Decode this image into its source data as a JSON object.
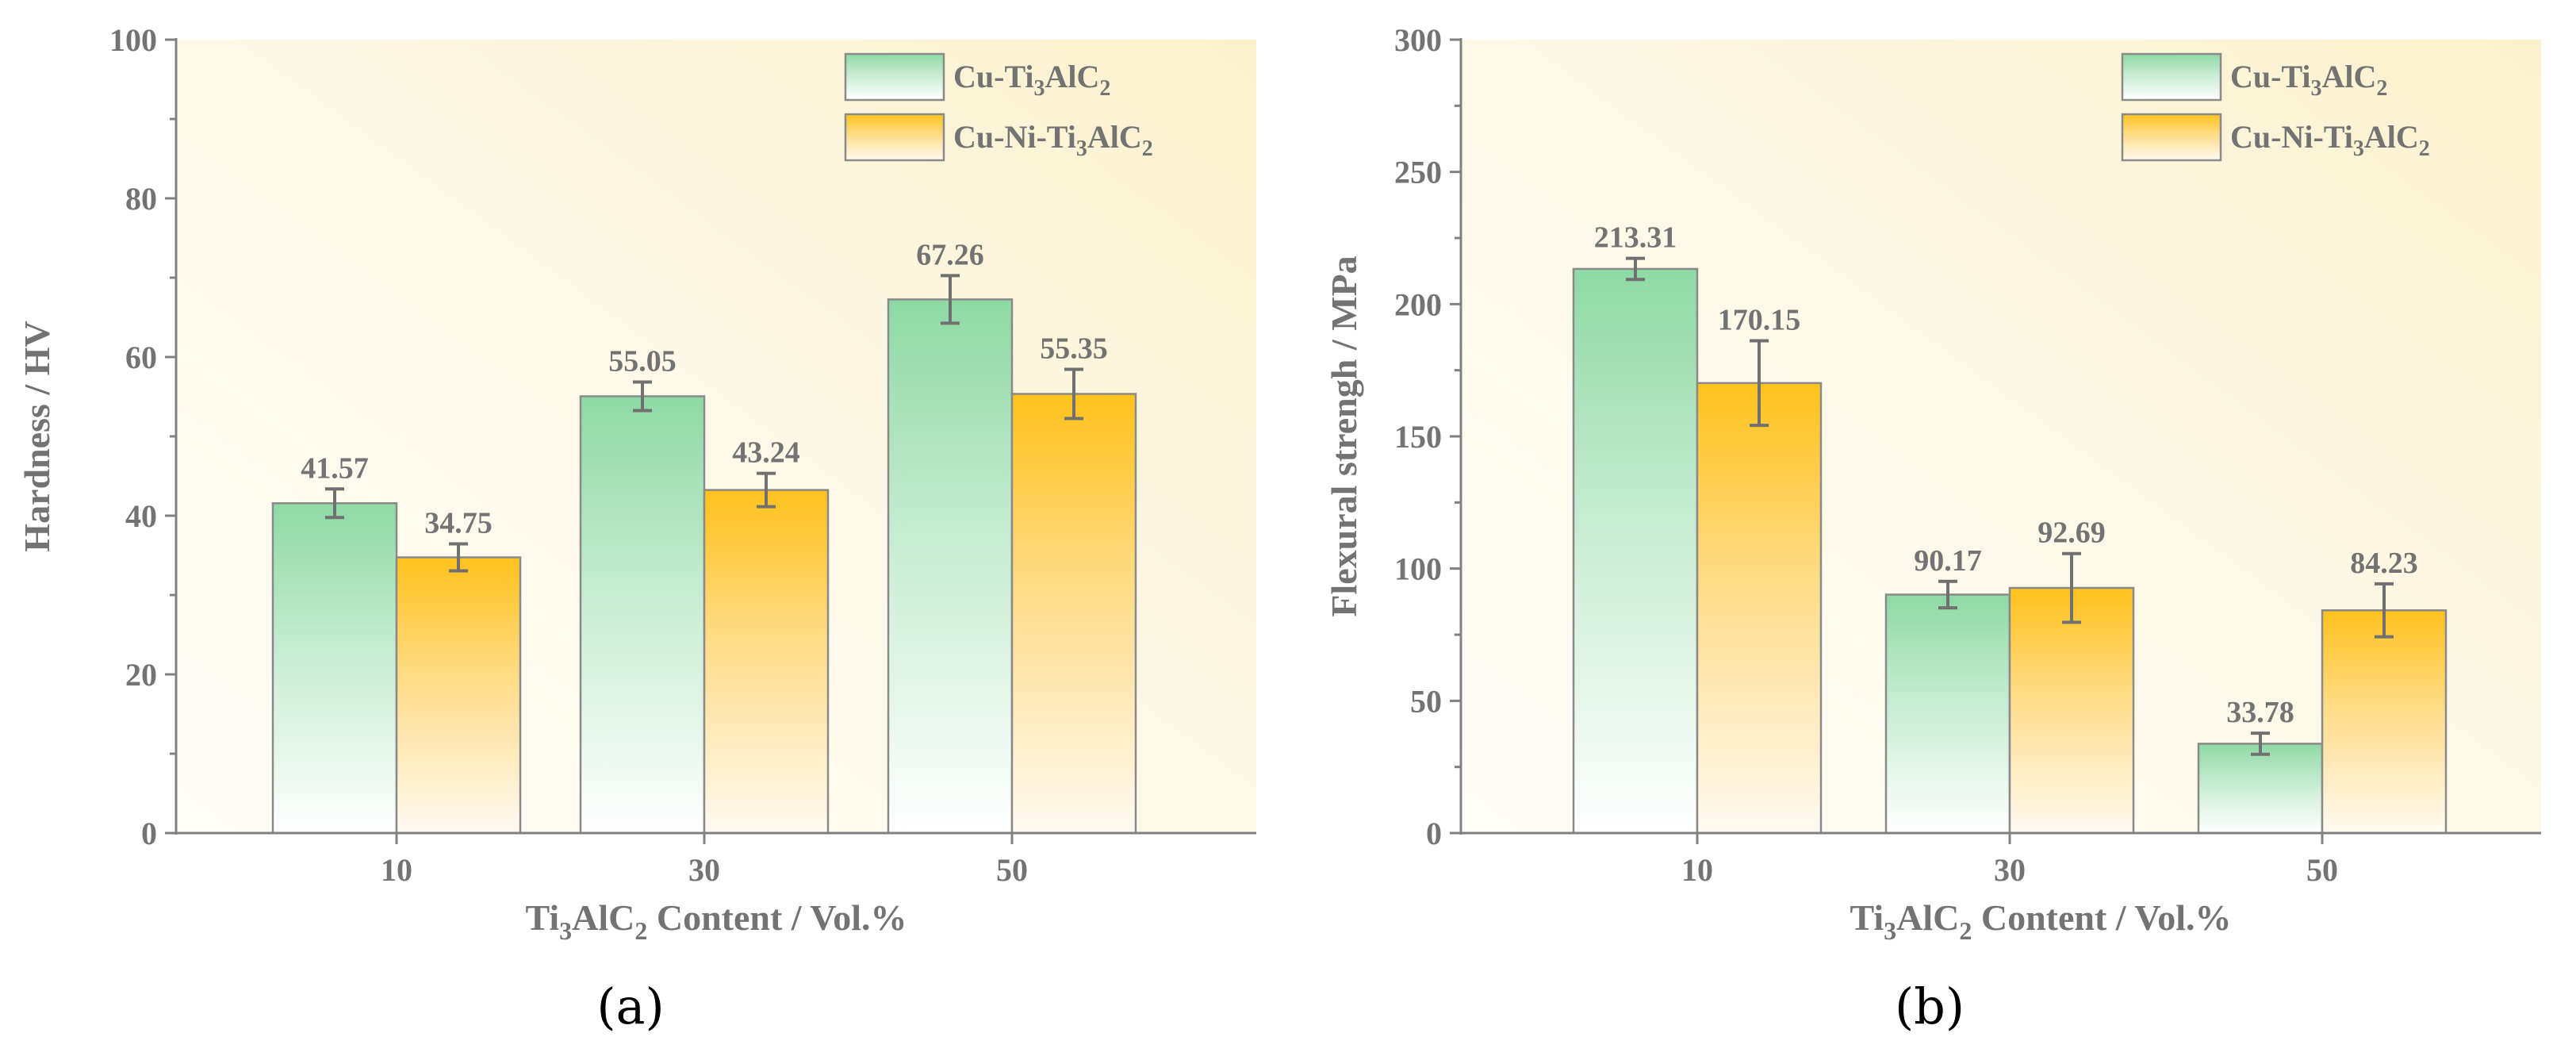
{
  "chart_data": [
    {
      "type": "bar",
      "panel_label": "(a)",
      "title": "",
      "categories": [
        "10",
        "30",
        "50"
      ],
      "series": [
        {
          "name": "Cu-Ti3AlC2",
          "values": [
            41.57,
            55.05,
            67.26
          ],
          "errors": [
            1.8,
            1.8,
            3.0
          ],
          "labels": [
            "41.57",
            "55.05",
            "67.26"
          ]
        },
        {
          "name": "Cu-Ni-Ti3AlC2",
          "values": [
            34.75,
            43.24,
            55.35
          ],
          "errors": [
            1.7,
            2.1,
            3.1
          ],
          "labels": [
            "34.75",
            "43.24",
            "55.35"
          ]
        }
      ],
      "legend": [
        {
          "base": "Cu-Ti",
          "sub1": "3",
          "mid": "AlC",
          "sub2": "2"
        },
        {
          "base": "Cu-Ni-Ti",
          "sub1": "3",
          "mid": "AlC",
          "sub2": "2"
        }
      ],
      "legend_position": "top-right",
      "xlabel": {
        "part1": "Ti",
        "sub1": "3",
        "part2": "AlC",
        "sub2": "2",
        "part3": " Content / Vol.%"
      },
      "ylabel": "Hardness / HV",
      "ylim": [
        0,
        100
      ],
      "yticks": [
        "0",
        "20",
        "40",
        "60",
        "80",
        "100"
      ],
      "grid": false
    },
    {
      "type": "bar",
      "panel_label": "(b)",
      "title": "",
      "categories": [
        "10",
        "30",
        "50"
      ],
      "series": [
        {
          "name": "Cu-Ti3AlC2",
          "values": [
            213.31,
            90.17,
            33.78
          ],
          "errors": [
            4,
            5,
            4
          ],
          "labels": [
            "213.31",
            "90.17",
            "33.78"
          ]
        },
        {
          "name": "Cu-Ni-Ti3AlC2",
          "values": [
            170.15,
            92.69,
            84.23
          ],
          "errors": [
            16,
            13,
            10
          ],
          "labels": [
            "170.15",
            "92.69",
            "84.23"
          ]
        }
      ],
      "legend": [
        {
          "base": "Cu-Ti",
          "sub1": "3",
          "mid": "AlC",
          "sub2": "2"
        },
        {
          "base": "Cu-Ni-Ti",
          "sub1": "3",
          "mid": "AlC",
          "sub2": "2"
        }
      ],
      "legend_position": "top-right",
      "xlabel": {
        "part1": "Ti",
        "sub1": "3",
        "part2": "AlC",
        "sub2": "2",
        "part3": " Content / Vol.%"
      },
      "ylabel": "Flexural strengh / MPa",
      "ylim": [
        0,
        300
      ],
      "yticks": [
        "0",
        "50",
        "100",
        "150",
        "200",
        "250",
        "300"
      ],
      "grid": false
    }
  ],
  "colors": {
    "green_top": "#8ed9a4",
    "green_bottom": "#ffffff",
    "orange_top": "#ffc21c",
    "orange_bottom": "#ffffff",
    "plot_bg_light": "#fdfaf0",
    "plot_bg_warm": "#fbf1cf",
    "axis": "#808080",
    "text": "#737373"
  }
}
